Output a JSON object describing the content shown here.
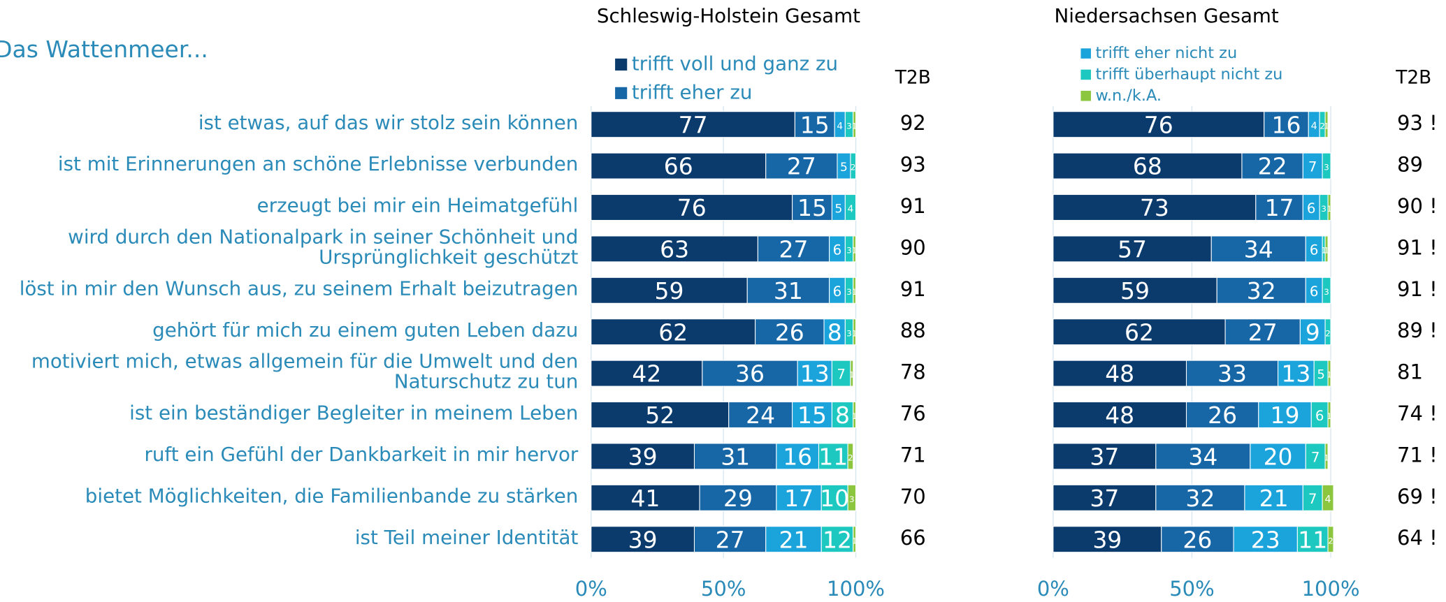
{
  "chart_data": [
    {
      "type": "stacked-bar-horizontal",
      "title": "Schleswig-Holstein Gesamt",
      "heading": "Das Wattenmeer...",
      "t2b_header": "T2B",
      "categories": [
        "ist etwas, auf das wir stolz sein können",
        "ist mit Erinnerungen an schöne Erlebnisse verbunden",
        "erzeugt bei mir ein Heimatgefühl",
        "wird durch den Nationalpark in seiner Schönheit und\nUrsprünglichkeit geschützt",
        "löst in mir den Wunsch aus, zu seinem Erhalt beizutragen",
        "gehört für mich zu einem guten Leben dazu",
        "motiviert mich, etwas allgemein für die Umwelt und den\nNaturschutz zu tun",
        "ist ein beständiger Begleiter in meinem Leben",
        "ruft ein Gefühl der Dankbarkeit in mir hervor",
        "bietet Möglichkeiten, die Familienbande zu stärken",
        "ist Teil meiner Identität"
      ],
      "series": [
        {
          "name": "trifft voll und ganz zu",
          "color": "#0b3b6c",
          "values": [
            77,
            66,
            76,
            63,
            59,
            62,
            42,
            52,
            39,
            41,
            39
          ]
        },
        {
          "name": "trifft eher zu",
          "color": "#1766a6",
          "values": [
            15,
            27,
            15,
            27,
            31,
            26,
            36,
            24,
            31,
            29,
            27
          ]
        },
        {
          "name": "trifft eher nicht zu",
          "color": "#1ba3dc",
          "values": [
            4,
            5,
            5,
            6,
            6,
            8,
            13,
            15,
            16,
            17,
            21
          ]
        },
        {
          "name": "trifft überhaupt nicht zu",
          "color": "#1cc8bf",
          "values": [
            3,
            2,
            4,
            3,
            3,
            3,
            7,
            8,
            11,
            10,
            12
          ]
        },
        {
          "name": "w.n./k.A.",
          "color": "#8cc63f",
          "values": [
            1,
            0,
            0,
            1,
            1,
            1,
            1,
            1,
            2,
            3,
            1
          ]
        }
      ],
      "t2b": [
        92,
        93,
        91,
        90,
        91,
        88,
        78,
        76,
        71,
        70,
        66
      ],
      "xlim": [
        0,
        100
      ],
      "xticks": [
        {
          "value": 0,
          "label": "0%"
        },
        {
          "value": 50,
          "label": "50%"
        },
        {
          "value": 100,
          "label": "100%"
        }
      ],
      "grid": true
    },
    {
      "type": "stacked-bar-horizontal",
      "title": "Niedersachsen Gesamt",
      "t2b_header": "T2B",
      "series": [
        {
          "color": "#0b3b6c",
          "values": [
            76,
            68,
            73,
            57,
            59,
            62,
            48,
            48,
            37,
            37,
            39
          ]
        },
        {
          "color": "#1766a6",
          "values": [
            16,
            22,
            17,
            34,
            32,
            27,
            33,
            26,
            34,
            32,
            26
          ]
        },
        {
          "color": "#1ba3dc",
          "values": [
            4,
            7,
            6,
            6,
            6,
            9,
            13,
            19,
            20,
            21,
            23
          ]
        },
        {
          "color": "#1cc8bf",
          "values": [
            2,
            3,
            3,
            1,
            3,
            2,
            5,
            6,
            7,
            7,
            11
          ]
        },
        {
          "color": "#8cc63f",
          "values": [
            1,
            0,
            1,
            1,
            0,
            0,
            1,
            1,
            1,
            4,
            2
          ]
        }
      ],
      "t2b": [
        93,
        89,
        90,
        91,
        91,
        89,
        81,
        74,
        71,
        69,
        64
      ],
      "t2b_labels": [
        "93 !",
        "89",
        "90 !",
        "91 !",
        "91 !",
        "89 !",
        "81",
        "74 !",
        "71 !",
        "69 !",
        "64 !"
      ],
      "xlim": [
        0,
        100
      ],
      "xticks": [
        {
          "value": 0,
          "label": "0%"
        },
        {
          "value": 50,
          "label": "50%"
        },
        {
          "value": 100,
          "label": "100%"
        }
      ],
      "grid": true
    }
  ]
}
